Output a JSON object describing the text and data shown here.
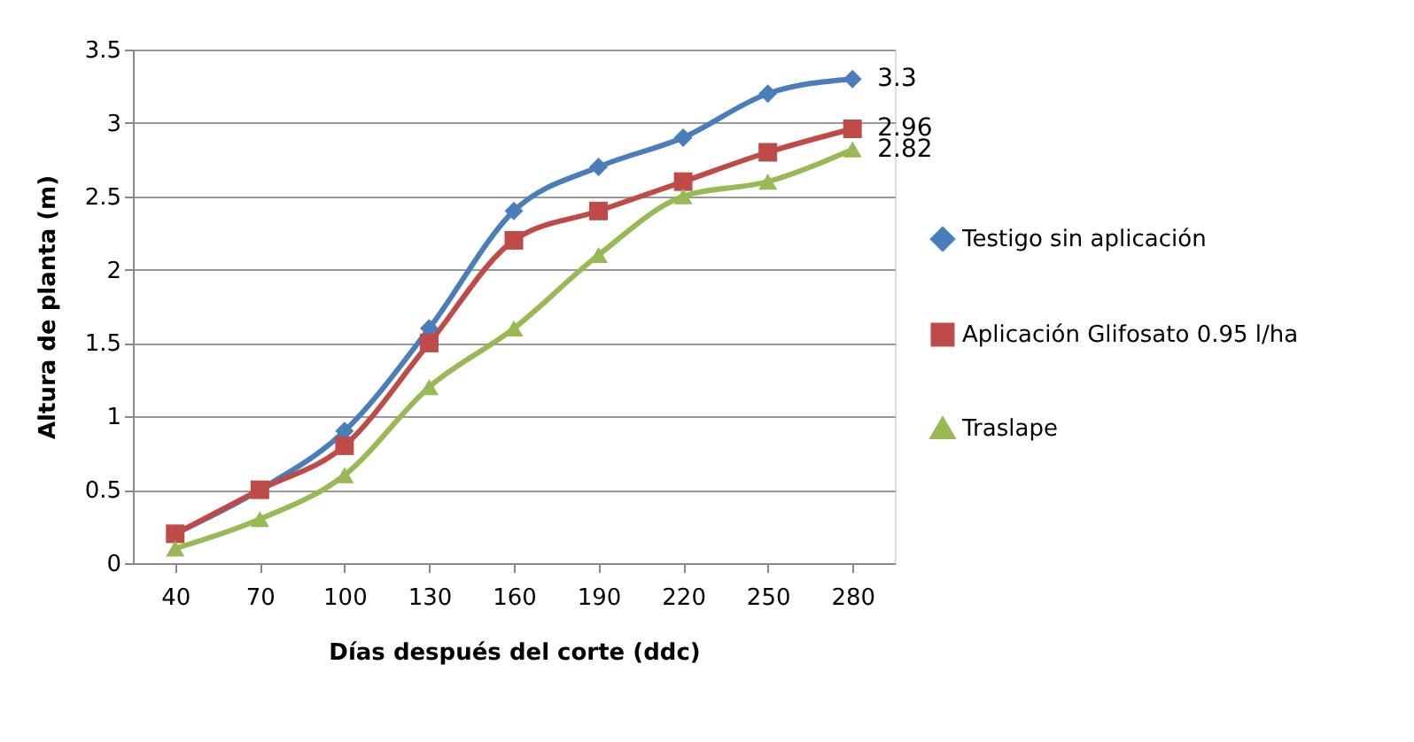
{
  "chart_data": {
    "type": "line",
    "xlabel": "Días después del corte (ddc)",
    "ylabel": "Altura de planta (m)",
    "categories": [
      "40",
      "70",
      "100",
      "130",
      "160",
      "190",
      "220",
      "250",
      "280"
    ],
    "series": [
      {
        "name": "Testigo sin aplicación",
        "color": "#4a7ebb",
        "marker": "diamond",
        "values": [
          0.2,
          0.5,
          0.9,
          1.6,
          2.4,
          2.7,
          2.9,
          3.2,
          3.3
        ],
        "value_labels": [
          null,
          null,
          null,
          null,
          null,
          null,
          null,
          null,
          "3.3"
        ]
      },
      {
        "name": "Aplicación Glifosato 0.95 l/ha",
        "color": "#be4b48",
        "marker": "square",
        "values": [
          0.2,
          0.5,
          0.8,
          1.5,
          2.2,
          2.4,
          2.6,
          2.8,
          2.96
        ],
        "value_labels": [
          null,
          null,
          null,
          null,
          null,
          null,
          null,
          null,
          "2.96"
        ]
      },
      {
        "name": "Traslape",
        "color": "#98b954",
        "marker": "triangle",
        "values": [
          0.1,
          0.3,
          0.6,
          1.2,
          1.6,
          2.1,
          2.5,
          2.6,
          2.82
        ],
        "value_labels": [
          null,
          null,
          null,
          null,
          null,
          null,
          null,
          null,
          "2.82"
        ]
      }
    ],
    "ylim": [
      0,
      3.5
    ],
    "yticks": [
      0,
      0.5,
      1,
      1.5,
      2,
      2.5,
      3,
      3.5
    ],
    "grid": "y",
    "legend": "right",
    "line_style": "solid"
  }
}
